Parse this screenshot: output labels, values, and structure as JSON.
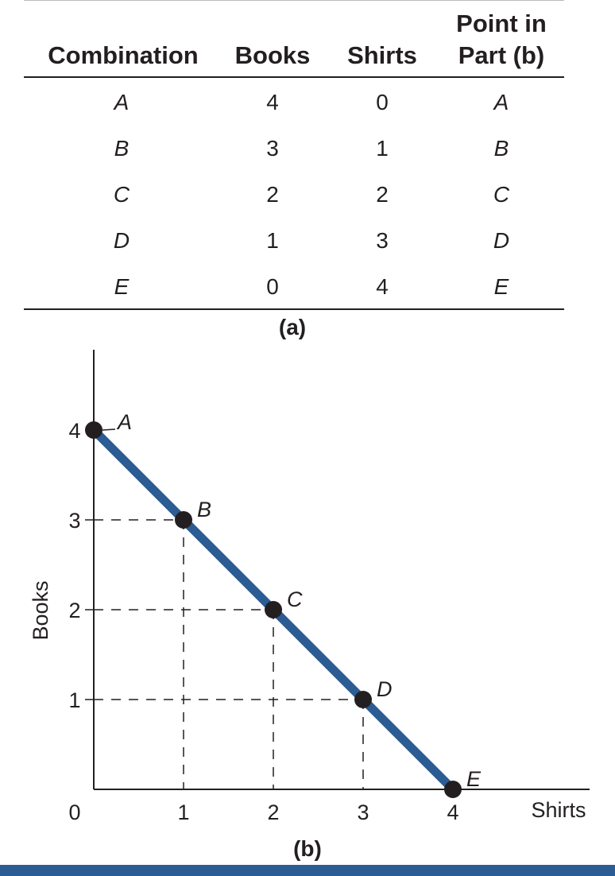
{
  "table": {
    "headers": {
      "combination": "Combination",
      "books": "Books",
      "shirts": "Shirts",
      "point_line1": "Point in",
      "point_line2": "Part (b)"
    },
    "rows": [
      {
        "combination": "A",
        "books": "4",
        "shirts": "0",
        "point": "A"
      },
      {
        "combination": "B",
        "books": "3",
        "shirts": "1",
        "point": "B"
      },
      {
        "combination": "C",
        "books": "2",
        "shirts": "2",
        "point": "C"
      },
      {
        "combination": "D",
        "books": "1",
        "shirts": "3",
        "point": "D"
      },
      {
        "combination": "E",
        "books": "0",
        "shirts": "4",
        "point": "E"
      }
    ],
    "caption": "(a)"
  },
  "chart_data": {
    "type": "line",
    "xlabel": "Shirts",
    "ylabel": "Books",
    "xlim": [
      0,
      4
    ],
    "ylim": [
      0,
      4
    ],
    "x_ticks": [
      "1",
      "2",
      "3",
      "4"
    ],
    "y_ticks": [
      "1",
      "2",
      "3",
      "4"
    ],
    "origin_label": "0",
    "points": [
      {
        "label": "A",
        "x": 0,
        "y": 4
      },
      {
        "label": "B",
        "x": 1,
        "y": 3
      },
      {
        "label": "C",
        "x": 2,
        "y": 2
      },
      {
        "label": "D",
        "x": 3,
        "y": 1
      },
      {
        "label": "E",
        "x": 4,
        "y": 0
      }
    ],
    "line_color": "#2b5c94",
    "caption": "(b)"
  },
  "colors": {
    "accent": "#2b5c94",
    "text": "#231f20"
  }
}
